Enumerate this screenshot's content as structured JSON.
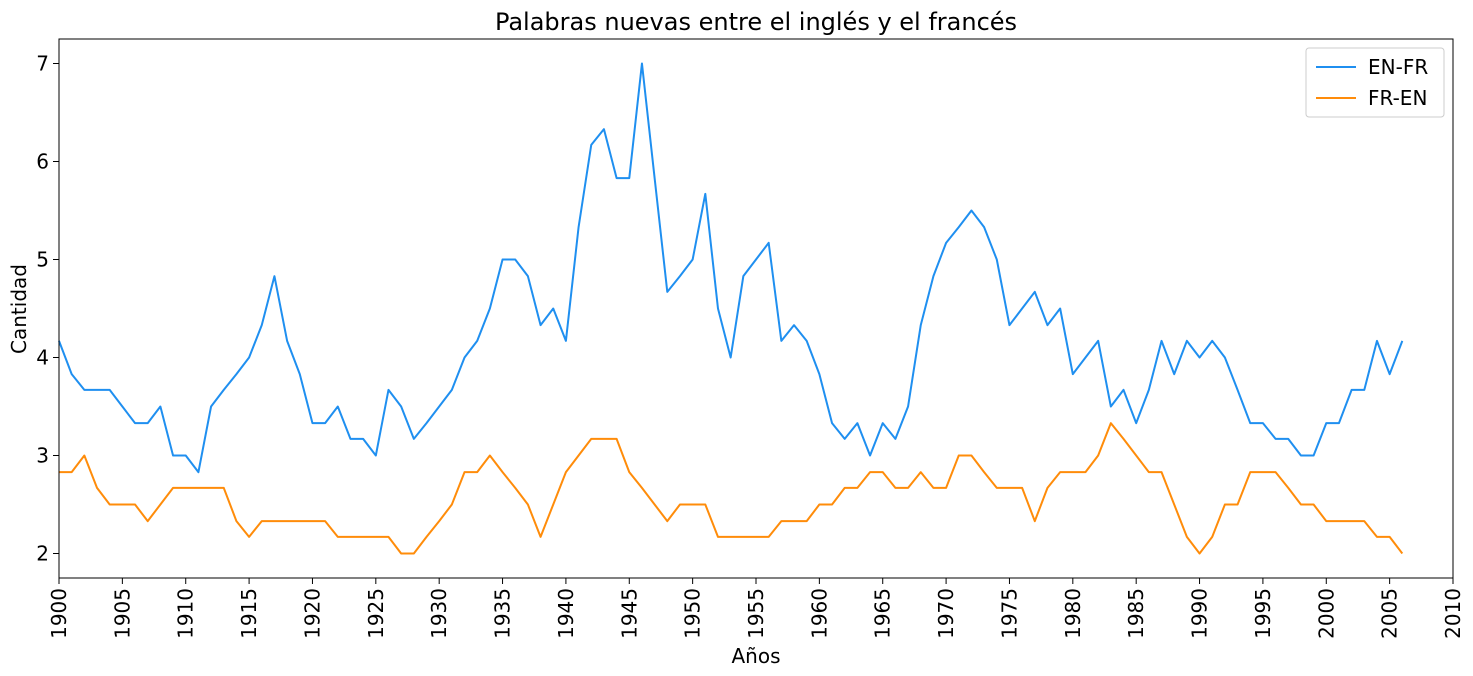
{
  "chart_data": {
    "type": "line",
    "title": "Palabras nuevas entre el inglés y el francés",
    "xlabel": "Años",
    "ylabel": "Cantidad",
    "xlim": [
      1900,
      2010
    ],
    "ylim": [
      1.75,
      7.25
    ],
    "xticks": [
      1900,
      1905,
      1910,
      1915,
      1920,
      1925,
      1930,
      1935,
      1940,
      1945,
      1950,
      1955,
      1960,
      1965,
      1970,
      1975,
      1980,
      1985,
      1990,
      1995,
      2000,
      2005,
      2010
    ],
    "xtick_labels": [
      "1900",
      "1905",
      "1910",
      "1915",
      "1920",
      "1925",
      "1930",
      "1935",
      "1940",
      "1945",
      "1950",
      "1955",
      "1960",
      "1965",
      "1970",
      "1975",
      "1980",
      "1985",
      "1990",
      "1995",
      "2000",
      "2005",
      "2010"
    ],
    "yticks": [
      2,
      3,
      4,
      5,
      6,
      7
    ],
    "ytick_labels": [
      "2",
      "3",
      "4",
      "5",
      "6",
      "7"
    ],
    "grid": false,
    "legend_position": "top-right",
    "x": [
      1900,
      1901,
      1902,
      1903,
      1904,
      1905,
      1906,
      1907,
      1908,
      1909,
      1910,
      1911,
      1912,
      1913,
      1914,
      1915,
      1916,
      1917,
      1918,
      1919,
      1920,
      1921,
      1922,
      1923,
      1924,
      1925,
      1926,
      1927,
      1928,
      1929,
      1930,
      1931,
      1932,
      1933,
      1934,
      1935,
      1936,
      1937,
      1938,
      1939,
      1940,
      1941,
      1942,
      1943,
      1944,
      1945,
      1946,
      1947,
      1948,
      1949,
      1950,
      1951,
      1952,
      1953,
      1954,
      1955,
      1956,
      1957,
      1958,
      1959,
      1960,
      1961,
      1962,
      1963,
      1964,
      1965,
      1966,
      1967,
      1968,
      1969,
      1970,
      1971,
      1972,
      1973,
      1974,
      1975,
      1976,
      1977,
      1978,
      1979,
      1980,
      1981,
      1982,
      1983,
      1984,
      1985,
      1986,
      1987,
      1988,
      1989,
      1990,
      1991,
      1992,
      1993,
      1994,
      1995,
      1996,
      1997,
      1998,
      1999,
      2000,
      2001,
      2002,
      2003,
      2004,
      2005,
      2006
    ],
    "series": [
      {
        "name": "EN-FR",
        "color": "#1f8ff0",
        "values": [
          4.17,
          3.83,
          3.67,
          3.67,
          3.67,
          3.5,
          3.33,
          3.33,
          3.5,
          3.0,
          3.0,
          2.83,
          3.5,
          3.67,
          3.83,
          4.0,
          4.33,
          4.83,
          4.17,
          3.83,
          3.33,
          3.33,
          3.5,
          3.17,
          3.17,
          3.0,
          3.67,
          3.5,
          3.17,
          3.33,
          3.5,
          3.67,
          4.0,
          4.17,
          4.5,
          5.0,
          5.0,
          4.83,
          4.33,
          4.5,
          4.17,
          5.33,
          6.17,
          6.33,
          5.83,
          5.83,
          7.0,
          5.83,
          4.67,
          4.83,
          5.0,
          5.67,
          4.5,
          4.0,
          4.83,
          5.0,
          5.17,
          4.17,
          4.33,
          4.17,
          3.83,
          3.33,
          3.17,
          3.33,
          3.0,
          3.33,
          3.17,
          3.5,
          4.33,
          4.83,
          5.17,
          5.33,
          5.5,
          5.33,
          5.0,
          4.33,
          4.5,
          4.67,
          4.33,
          4.5,
          3.83,
          4.0,
          4.17,
          3.5,
          3.67,
          3.33,
          3.67,
          4.17,
          3.83,
          4.17,
          4.0,
          4.17,
          4.0,
          3.67,
          3.33,
          3.33,
          3.17,
          3.17,
          3.0,
          3.0,
          3.33,
          3.33,
          3.67,
          3.67,
          4.17,
          3.83,
          4.17
        ]
      },
      {
        "name": "FR-EN",
        "color": "#ff8c0a",
        "values": [
          2.83,
          2.83,
          3.0,
          2.67,
          2.5,
          2.5,
          2.5,
          2.33,
          2.5,
          2.67,
          2.67,
          2.67,
          2.67,
          2.67,
          2.33,
          2.17,
          2.33,
          2.33,
          2.33,
          2.33,
          2.33,
          2.33,
          2.17,
          2.17,
          2.17,
          2.17,
          2.17,
          2.0,
          2.0,
          2.17,
          2.33,
          2.5,
          2.83,
          2.83,
          3.0,
          2.83,
          2.67,
          2.5,
          2.17,
          2.5,
          2.83,
          3.0,
          3.17,
          3.17,
          3.17,
          2.83,
          2.67,
          2.5,
          2.33,
          2.5,
          2.5,
          2.5,
          2.17,
          2.17,
          2.17,
          2.17,
          2.17,
          2.33,
          2.33,
          2.33,
          2.5,
          2.5,
          2.67,
          2.67,
          2.83,
          2.83,
          2.67,
          2.67,
          2.83,
          2.67,
          2.67,
          3.0,
          3.0,
          2.83,
          2.67,
          2.67,
          2.67,
          2.33,
          2.67,
          2.83,
          2.83,
          2.83,
          3.0,
          3.33,
          3.17,
          3.0,
          2.83,
          2.83,
          2.5,
          2.17,
          2.0,
          2.17,
          2.5,
          2.5,
          2.83,
          2.83,
          2.83,
          2.67,
          2.5,
          2.5,
          2.33,
          2.33,
          2.33,
          2.33,
          2.17,
          2.17,
          2.0
        ]
      }
    ]
  }
}
